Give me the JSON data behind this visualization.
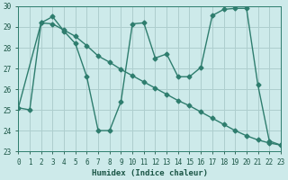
{
  "line1_x": [
    0,
    1,
    2,
    3,
    4,
    5,
    6,
    7,
    8,
    9,
    10,
    11,
    12,
    13,
    14,
    15,
    16,
    17,
    18,
    19,
    20,
    21,
    22,
    23
  ],
  "line1_y": [
    25.1,
    25.0,
    29.2,
    29.5,
    28.8,
    28.2,
    26.6,
    24.0,
    24.0,
    25.4,
    29.15,
    29.2,
    27.5,
    27.7,
    26.6,
    26.6,
    27.05,
    29.55,
    29.85,
    29.9,
    29.9,
    26.2,
    23.5,
    23.3
  ],
  "line2_x": [
    0,
    2,
    3,
    4,
    5,
    6,
    7,
    8,
    9,
    10,
    11,
    12,
    13,
    14,
    15,
    16,
    17,
    18,
    19,
    20,
    21,
    22,
    23
  ],
  "line2_y": [
    25.1,
    29.2,
    29.15,
    28.85,
    28.55,
    28.1,
    27.6,
    27.3,
    26.95,
    26.65,
    26.35,
    26.05,
    25.75,
    25.45,
    25.2,
    24.9,
    24.6,
    24.3,
    24.0,
    23.75,
    23.55,
    23.4,
    23.3
  ],
  "line_color": "#2e7d6e",
  "bg_color": "#cdeaea",
  "grid_color": "#aecece",
  "xlabel": "Humidex (Indice chaleur)",
  "ylim": [
    23,
    30
  ],
  "xlim": [
    0,
    23
  ],
  "yticks": [
    23,
    24,
    25,
    26,
    27,
    28,
    29,
    30
  ],
  "xticks": [
    0,
    1,
    2,
    3,
    4,
    5,
    6,
    7,
    8,
    9,
    10,
    11,
    12,
    13,
    14,
    15,
    16,
    17,
    18,
    19,
    20,
    21,
    22,
    23
  ],
  "marker": "D",
  "markersize": 2.5,
  "linewidth": 1.0
}
